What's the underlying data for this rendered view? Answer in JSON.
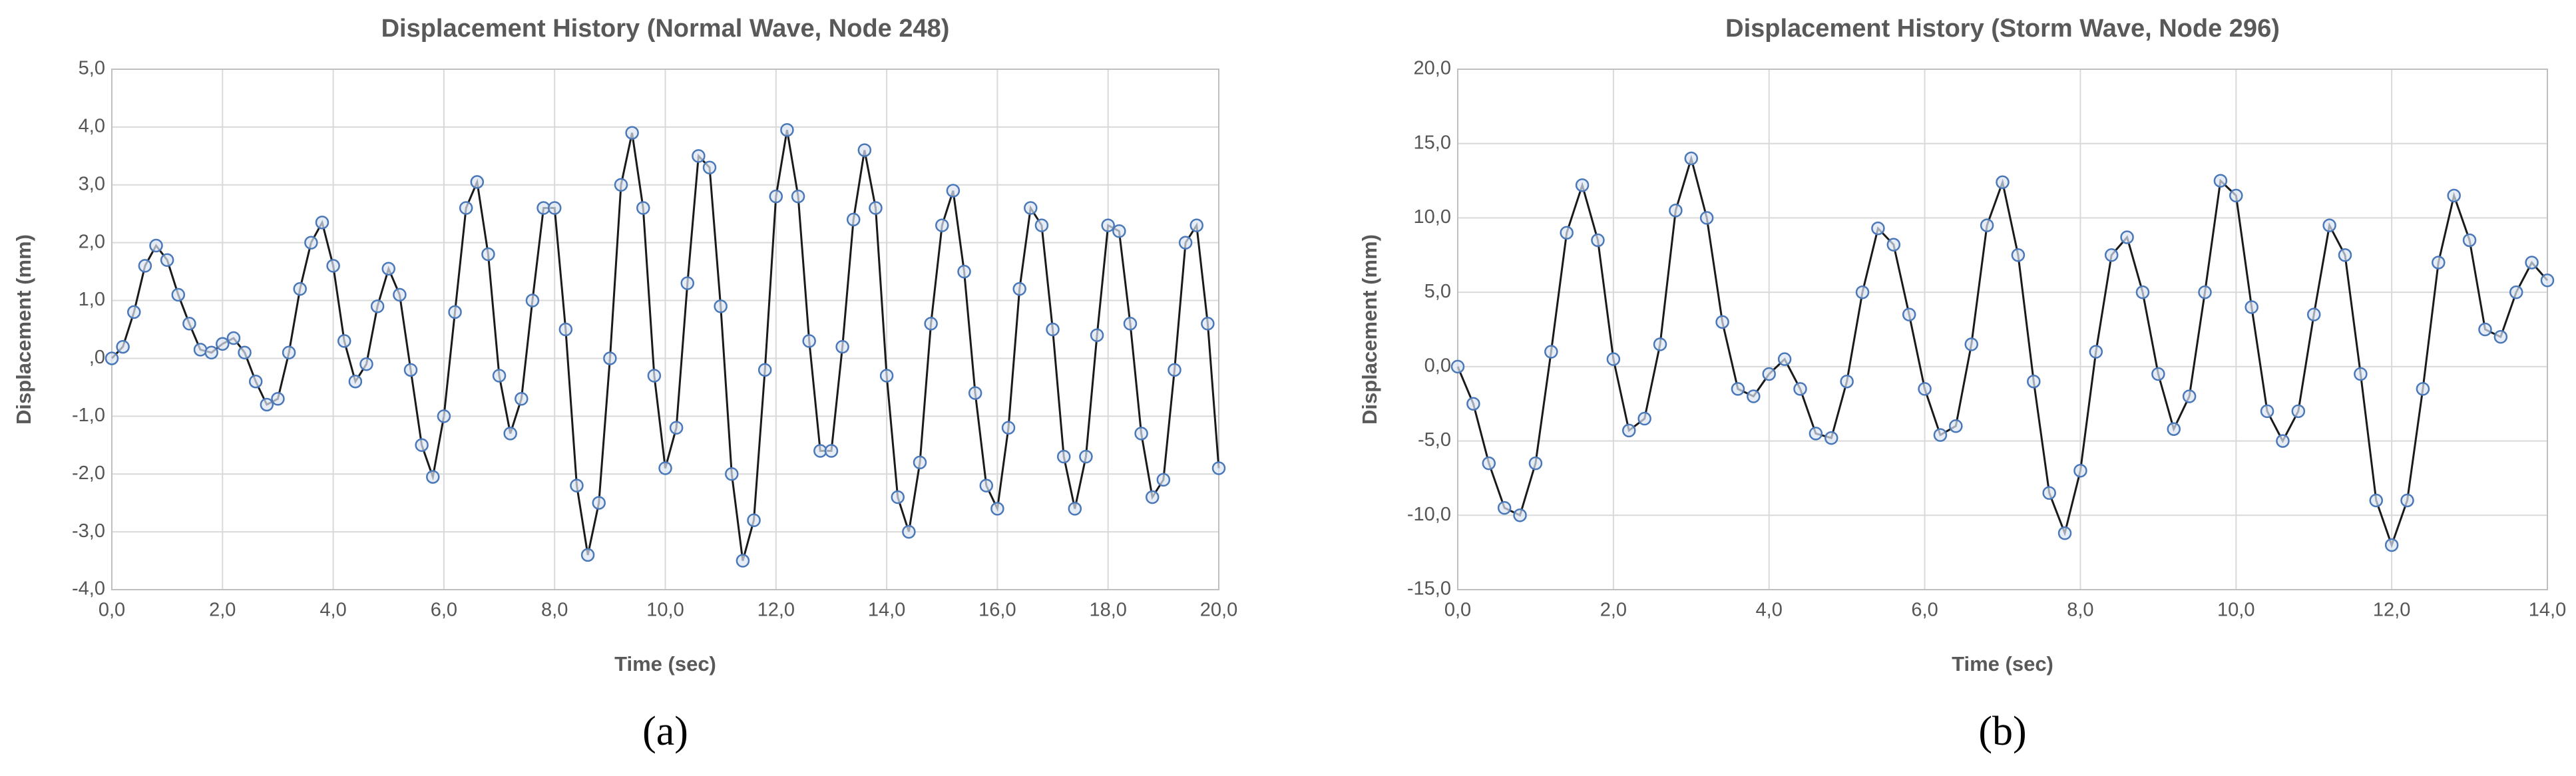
{
  "chart_data": [
    {
      "type": "line",
      "title": "Displacement History (Normal Wave, Node 248)",
      "x_label": "Time (sec)",
      "y_label": "Displacement (mm)",
      "caption": "(a)",
      "grid": true,
      "line_color": "#1a1a1a",
      "marker_color": "#4a78b8",
      "xlim": [
        0,
        20
      ],
      "ylim": [
        -4,
        5
      ],
      "xticks": [
        {
          "value": 0,
          "label": "0,0"
        },
        {
          "value": 2,
          "label": "2,0"
        },
        {
          "value": 4,
          "label": "4,0"
        },
        {
          "value": 6,
          "label": "6,0"
        },
        {
          "value": 8,
          "label": "8,0"
        },
        {
          "value": 10,
          "label": "10,0"
        },
        {
          "value": 12,
          "label": "12,0"
        },
        {
          "value": 14,
          "label": "14,0"
        },
        {
          "value": 16,
          "label": "16,0"
        },
        {
          "value": 18,
          "label": "18,0"
        },
        {
          "value": 20,
          "label": "20,0"
        }
      ],
      "yticks": [
        {
          "value": -4,
          "label": "-4,0"
        },
        {
          "value": -3,
          "label": "-3,0"
        },
        {
          "value": -2,
          "label": "-2,0"
        },
        {
          "value": -1,
          "label": "-1,0"
        },
        {
          "value": 0,
          "label": ",0"
        },
        {
          "value": 1,
          "label": "1,0"
        },
        {
          "value": 2,
          "label": "2,0"
        },
        {
          "value": 3,
          "label": "3,0"
        },
        {
          "value": 4,
          "label": "4,0"
        },
        {
          "value": 5,
          "label": "5,0"
        }
      ],
      "x": [
        0,
        0.2,
        0.4,
        0.6,
        0.8,
        1.0,
        1.2,
        1.4,
        1.6,
        1.8,
        2.0,
        2.2,
        2.4,
        2.6,
        2.8,
        3.0,
        3.2,
        3.4,
        3.6,
        3.8,
        4.0,
        4.2,
        4.4,
        4.6,
        4.8,
        5.0,
        5.2,
        5.4,
        5.6,
        5.8,
        6.0,
        6.2,
        6.4,
        6.6,
        6.8,
        7.0,
        7.2,
        7.4,
        7.6,
        7.8,
        8.0,
        8.2,
        8.4,
        8.6,
        8.8,
        9.0,
        9.2,
        9.4,
        9.6,
        9.8,
        10.0,
        10.2,
        10.4,
        10.6,
        10.8,
        11.0,
        11.2,
        11.4,
        11.6,
        11.8,
        12.0,
        12.2,
        12.4,
        12.6,
        12.8,
        13.0,
        13.2,
        13.4,
        13.6,
        13.8,
        14.0,
        14.2,
        14.4,
        14.6,
        14.8,
        15.0,
        15.2,
        15.4,
        15.6,
        15.8,
        16.0,
        16.2,
        16.4,
        16.6,
        16.8,
        17.0,
        17.2,
        17.4,
        17.6,
        17.8,
        18.0,
        18.2,
        18.4,
        18.6,
        18.8,
        19.0,
        19.2,
        19.4,
        19.6,
        19.8,
        20.0
      ],
      "values": [
        0.0,
        0.2,
        0.8,
        1.6,
        1.95,
        1.7,
        1.1,
        0.6,
        0.15,
        0.1,
        0.25,
        0.35,
        0.1,
        -0.4,
        -0.8,
        -0.7,
        0.1,
        1.2,
        2.0,
        2.35,
        1.6,
        0.3,
        -0.4,
        -0.1,
        0.9,
        1.55,
        1.1,
        -0.2,
        -1.5,
        -2.05,
        -1.0,
        0.8,
        2.6,
        3.05,
        1.8,
        -0.3,
        -1.3,
        -0.7,
        1.0,
        2.6,
        2.6,
        0.5,
        -2.2,
        -3.4,
        -2.5,
        0.0,
        3.0,
        3.9,
        2.6,
        -0.3,
        -1.9,
        -1.2,
        1.3,
        3.5,
        3.3,
        0.9,
        -2.0,
        -3.5,
        -2.8,
        -0.2,
        2.8,
        3.95,
        2.8,
        0.3,
        -1.6,
        -1.6,
        0.2,
        2.4,
        3.6,
        2.6,
        -0.3,
        -2.4,
        -3.0,
        -1.8,
        0.6,
        2.3,
        2.9,
        1.5,
        -0.6,
        -2.2,
        -2.6,
        -1.2,
        1.2,
        2.6,
        2.3,
        0.5,
        -1.7,
        -2.6,
        -1.7,
        0.4,
        2.3,
        2.2,
        0.6,
        -1.3,
        -2.4,
        -2.1,
        -0.2,
        2.0,
        2.3,
        0.6,
        -1.9
      ]
    },
    {
      "type": "line",
      "title": "Displacement History (Storm Wave, Node 296)",
      "x_label": "Time (sec)",
      "y_label": "Displacement (mm)",
      "caption": "(b)",
      "grid": true,
      "line_color": "#1a1a1a",
      "marker_color": "#4a78b8",
      "xlim": [
        0,
        14
      ],
      "ylim": [
        -15,
        20
      ],
      "xticks": [
        {
          "value": 0,
          "label": "0,0"
        },
        {
          "value": 2,
          "label": "2,0"
        },
        {
          "value": 4,
          "label": "4,0"
        },
        {
          "value": 6,
          "label": "6,0"
        },
        {
          "value": 8,
          "label": "8,0"
        },
        {
          "value": 10,
          "label": "10,0"
        },
        {
          "value": 12,
          "label": "12,0"
        },
        {
          "value": 14,
          "label": "14,0"
        }
      ],
      "yticks": [
        {
          "value": -15,
          "label": "-15,0"
        },
        {
          "value": -10,
          "label": "-10,0"
        },
        {
          "value": -5,
          "label": "-5,0"
        },
        {
          "value": 0,
          "label": "0,0"
        },
        {
          "value": 5,
          "label": "5,0"
        },
        {
          "value": 10,
          "label": "10,0"
        },
        {
          "value": 15,
          "label": "15,0"
        },
        {
          "value": 20,
          "label": "20,0"
        }
      ],
      "x": [
        0,
        0.2,
        0.4,
        0.6,
        0.8,
        1.0,
        1.2,
        1.4,
        1.6,
        1.8,
        2.0,
        2.2,
        2.4,
        2.6,
        2.8,
        3.0,
        3.2,
        3.4,
        3.6,
        3.8,
        4.0,
        4.2,
        4.4,
        4.6,
        4.8,
        5.0,
        5.2,
        5.4,
        5.6,
        5.8,
        6.0,
        6.2,
        6.4,
        6.6,
        6.8,
        7.0,
        7.2,
        7.4,
        7.6,
        7.8,
        8.0,
        8.2,
        8.4,
        8.6,
        8.8,
        9.0,
        9.2,
        9.4,
        9.6,
        9.8,
        10.0,
        10.2,
        10.4,
        10.6,
        10.8,
        11.0,
        11.2,
        11.4,
        11.6,
        11.8,
        12.0,
        12.2,
        12.4,
        12.6,
        12.8,
        13.0,
        13.2,
        13.4,
        13.6,
        13.8,
        14.0
      ],
      "values": [
        0,
        -2.5,
        -6.5,
        -9.5,
        -10,
        -6.5,
        1.0,
        9,
        12.2,
        8.5,
        0.5,
        -4.3,
        -3.5,
        1.5,
        10.5,
        14,
        10,
        3,
        -1.5,
        -2,
        -0.5,
        0.5,
        -1.5,
        -4.5,
        -4.8,
        -1,
        5,
        9.3,
        8.2,
        3.5,
        -1.5,
        -4.6,
        -4,
        1.5,
        9.5,
        12.4,
        7.5,
        -1,
        -8.5,
        -11.2,
        -7,
        1.0,
        7.5,
        8.7,
        5,
        -0.5,
        -4.2,
        -2,
        5,
        12.5,
        11.5,
        4,
        -3,
        -5,
        -3,
        3.5,
        9.5,
        7.5,
        -0.5,
        -9,
        -12,
        -9,
        -1.5,
        7,
        11.5,
        8.5,
        2.5,
        2,
        5,
        7,
        5.8
      ]
    }
  ]
}
